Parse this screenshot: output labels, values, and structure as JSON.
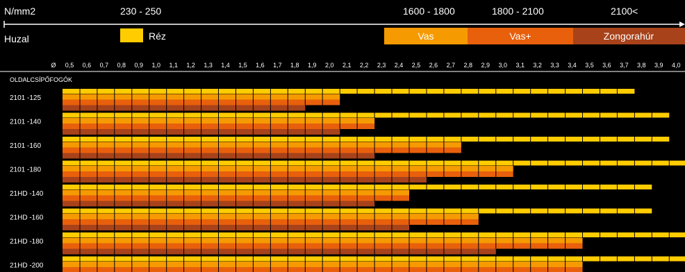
{
  "header": {
    "unit_label": "N/mm2",
    "strength_ranges": [
      "230 - 250",
      "1600 - 1800",
      "1800 - 2100",
      "2100<"
    ],
    "wire_label": "Huzal"
  },
  "legend": {
    "copper": {
      "label": "Réz",
      "color": "#FFCC00"
    },
    "materials": [
      {
        "label": "Vas",
        "color": "#F59A00"
      },
      {
        "label": "Vas+",
        "color": "#E8600C"
      },
      {
        "label": "Zongorahúr",
        "color": "#A8421A"
      }
    ]
  },
  "chart_data": {
    "type": "bar",
    "orientation": "horizontal",
    "title": "",
    "diameter_symbol": "Ø",
    "x_ticks": [
      "0,5",
      "0,6",
      "0,7",
      "0,8",
      "0,9",
      "1,0",
      "1,1",
      "1,2",
      "1,3",
      "1,4",
      "1,5",
      "1,6",
      "1,7",
      "1,8",
      "1,9",
      "2,0",
      "2,1",
      "2,2",
      "2,3",
      "2,4",
      "2,5",
      "2,6",
      "2,7",
      "2,8",
      "2,9",
      "3,0",
      "3,1",
      "3,2",
      "3,3",
      "3,4",
      "3,5",
      "3,6",
      "3,7",
      "3,8",
      "3,9",
      "4,0"
    ],
    "xlim": [
      0.5,
      4.0
    ],
    "group_label": "OLDALCSÍPŐFOGÓK",
    "categories": [
      "2101 -125",
      "2101 -140",
      "2101 -160",
      "2101 -180",
      "21HD -140",
      "21HD -160",
      "21HD -180",
      "21HD -200"
    ],
    "series": [
      {
        "name": "Réz",
        "color": "#FFCC00",
        "values": [
          3.7,
          3.9,
          3.9,
          4.0,
          3.8,
          3.8,
          4.0,
          4.0
        ]
      },
      {
        "name": "Vas",
        "color": "#F59A00",
        "values": [
          2.0,
          2.2,
          2.7,
          3.0,
          2.4,
          2.8,
          3.4,
          3.4
        ]
      },
      {
        "name": "Vas+",
        "color": "#E8600C",
        "values": [
          2.0,
          2.2,
          2.7,
          3.0,
          2.4,
          2.8,
          3.4,
          3.4
        ]
      },
      {
        "name": "Zongorahúr",
        "color": "#A8421A",
        "values": [
          1.8,
          2.0,
          2.2,
          2.5,
          2.2,
          2.4,
          2.9,
          2.9
        ]
      }
    ]
  }
}
